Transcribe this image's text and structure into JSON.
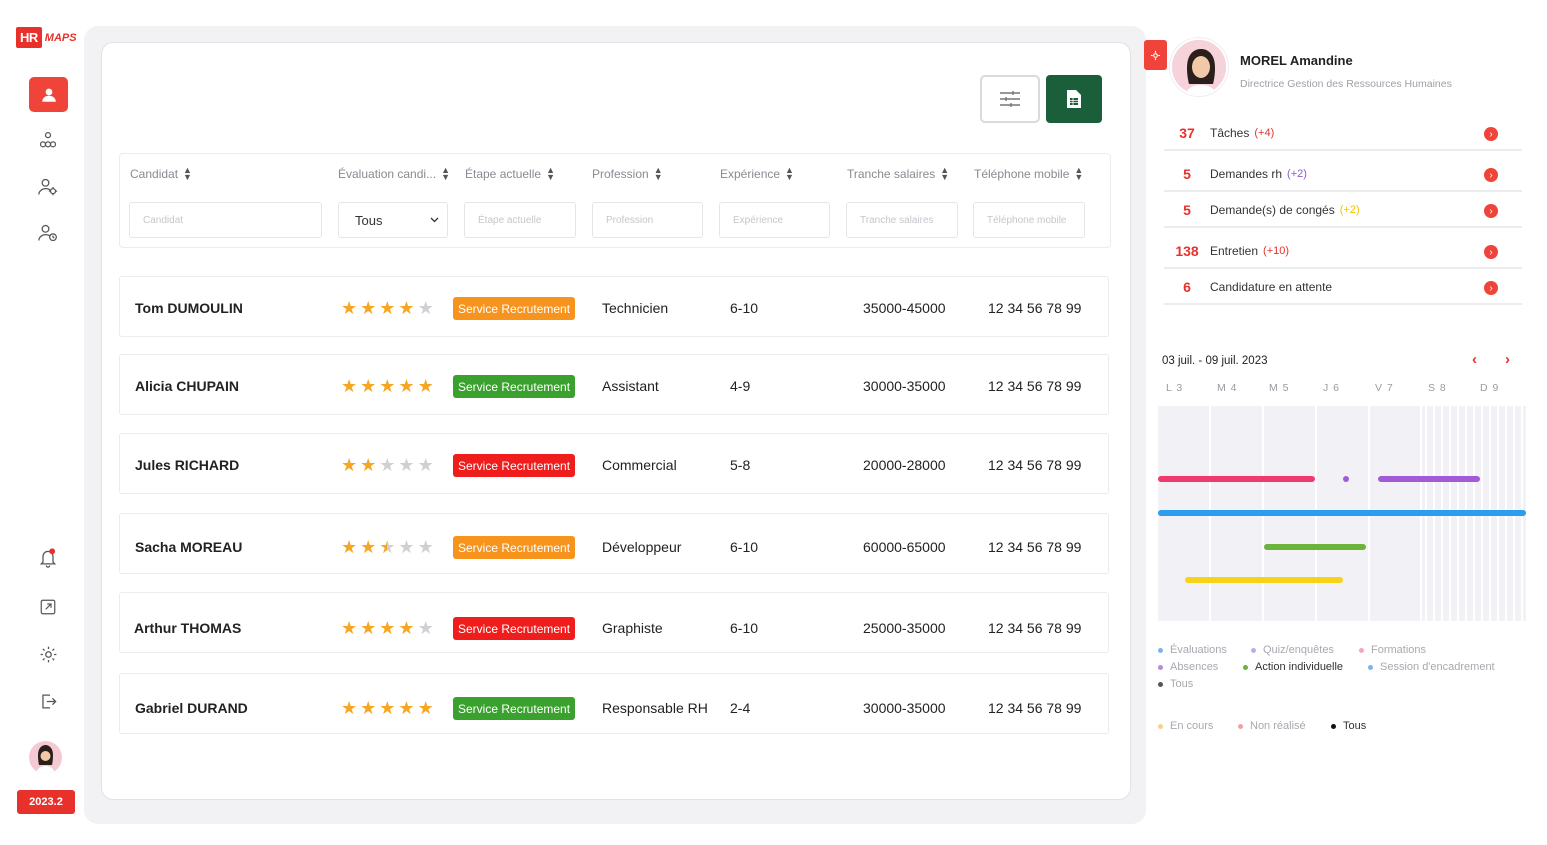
{
  "brand": {
    "hr": "HR",
    "maps": "MAPS",
    "year": "2023.2"
  },
  "nav": [
    "user-icon",
    "org-icon",
    "user-settings-icon",
    "user-clock-icon",
    "bell-icon",
    "external-link-icon",
    "gear-icon",
    "logout-icon"
  ],
  "table": {
    "columns": [
      "Candidat",
      "Évaluation candi...",
      "Étape actuelle",
      "Profession",
      "Expérience",
      "Tranche salaires",
      "Téléphone mobile"
    ],
    "filters": {
      "candidat": "Candidat",
      "evaluation": "Tous",
      "etape": "Étape actuelle",
      "profession": "Profession",
      "experience": "Expérience",
      "salaire": "Tranche salaires",
      "telephone": "Téléphone mobile"
    },
    "rows": [
      {
        "name": "Tom DUMOULIN",
        "rating": 4,
        "stage": "Service Recrutement",
        "stage_color": "#f7941d",
        "profession": "Technicien",
        "experience": "6-10",
        "salary": "35000-45000",
        "phone": "12 34 56 78 99"
      },
      {
        "name": "Alicia CHUPAIN",
        "rating": 5,
        "stage": "Service Recrutement",
        "stage_color": "#3aa12e",
        "profession": "Assistant",
        "experience": "4-9",
        "salary": "30000-35000",
        "phone": "12 34 56 78 99"
      },
      {
        "name": "Jules RICHARD",
        "rating": 2,
        "stage": "Service Recrutement",
        "stage_color": "#f01d1d",
        "profession": "Commercial",
        "experience": "5-8",
        "salary": "20000-28000",
        "phone": "12 34 56 78 99"
      },
      {
        "name": "Sacha MOREAU",
        "rating": 2.5,
        "stage": "Service Recrutement",
        "stage_color": "#f7941d",
        "profession": "Développeur",
        "experience": "6-10",
        "salary": "60000-65000",
        "phone": "12 34 56 78 99"
      },
      {
        "name": "Arthur THOMAS",
        "rating": 4,
        "stage": "Service Recrutement",
        "stage_color": "#f01d1d",
        "profession": "Graphiste",
        "experience": "6-10",
        "salary": "25000-35000",
        "phone": "12 34 56 78 99"
      },
      {
        "name": "Gabriel DURAND",
        "rating": 5,
        "stage": "Service Recrutement",
        "stage_color": "#3aa12e",
        "profession": "Responsable RH",
        "experience": "2-4",
        "salary": "30000-35000",
        "phone": "12 34 56 78 99"
      }
    ]
  },
  "profile": {
    "name": "MOREL Amandine",
    "role": "Directrice Gestion des Ressources Humaines"
  },
  "stats": [
    {
      "count": "37",
      "label": "Tâches",
      "delta": "(+4)",
      "delta_color": "#e8312a"
    },
    {
      "count": "5",
      "label": "Demandes rh",
      "delta": "(+2)",
      "delta_color": "#8a5cd6"
    },
    {
      "count": "5",
      "label": "Demande(s) de congés",
      "delta": "(+2)",
      "delta_color": "#f2c200"
    },
    {
      "count": "138",
      "label": "Entretien",
      "delta": "(+10)",
      "delta_color": "#e8312a"
    },
    {
      "count": "6",
      "label": "Candidature en attente",
      "delta": "",
      "delta_color": "#e8312a"
    }
  ],
  "calendar": {
    "range": "03 juil. - 09 juil. 2023",
    "prev": "‹",
    "next": "›",
    "days": [
      "L 3",
      "M 4",
      "M 5",
      "J 6",
      "V 7",
      "S 8",
      "D 9"
    ]
  },
  "legend_types": [
    {
      "label": "Évaluations",
      "color": "#7fb3e8"
    },
    {
      "label": "Quiz/enquêtes",
      "color": "#b7b0e8"
    },
    {
      "label": "Formations",
      "color": "#f2a7bf"
    },
    {
      "label": "Absences",
      "color": "#b58be0"
    },
    {
      "label": "Action individuelle",
      "color": "#6bb33a"
    },
    {
      "label": "Session d'encadrement",
      "color": "#7fb3e8"
    },
    {
      "label": "Tous",
      "color": "#555555"
    }
  ],
  "legend_status": [
    {
      "label": "En cours",
      "color": "#f6d28a"
    },
    {
      "label": "Non réalisé",
      "color": "#f2a0a8"
    },
    {
      "label": "Tous",
      "color": "#111111"
    }
  ]
}
